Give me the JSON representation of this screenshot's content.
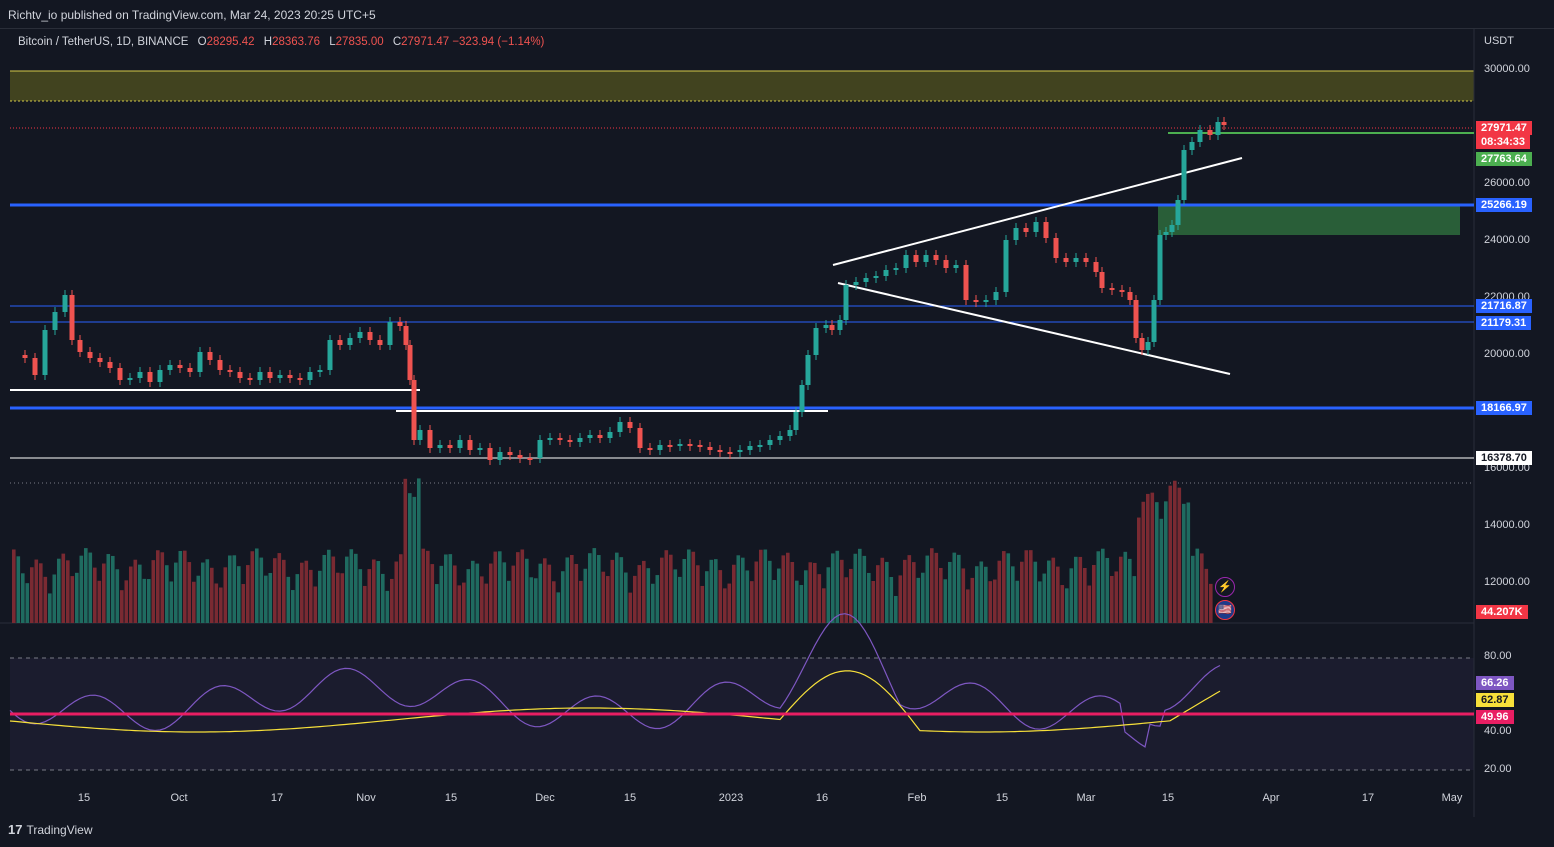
{
  "publisher": "Richtv_io published on TradingView.com, Mar 24, 2023 20:25 UTC+5",
  "legend": {
    "symbol": "Bitcoin / TetherUS, 1D, BINANCE",
    "o_label": "O",
    "o_val": "28295.42",
    "h_label": "H",
    "h_val": "28363.76",
    "l_label": "L",
    "l_val": "27835.00",
    "c_label": "C",
    "c_val": "27971.47",
    "change": "−323.94 (−1.14%)"
  },
  "currency": "USDT",
  "price_axis": {
    "ticks": [
      "30000.00",
      "26000.00",
      "24000.00",
      "22000.00",
      "20000.00",
      "16000.00",
      "14000.00",
      "12000.00"
    ],
    "labels": [
      {
        "text": "27971.47",
        "color": "#f23645"
      },
      {
        "text": "08:34:33",
        "color": "#f23645"
      },
      {
        "text": "27763.64",
        "color": "#4caf50"
      },
      {
        "text": "25266.19",
        "color": "#2962ff"
      },
      {
        "text": "21716.87",
        "color": "#2962ff"
      },
      {
        "text": "21179.31",
        "color": "#2962ff"
      },
      {
        "text": "18166.97",
        "color": "#2962ff"
      },
      {
        "text": "16378.70",
        "color": "#ffffff"
      },
      {
        "text": "44.207K",
        "color": "#f23645"
      }
    ]
  },
  "rsi_axis": {
    "ticks": [
      "80.00",
      "40.00",
      "20.00"
    ],
    "labels": [
      {
        "text": "66.26",
        "color": "#7e57c2"
      },
      {
        "text": "62.87",
        "color": "#f7e03a"
      },
      {
        "text": "49.96",
        "color": "#e91e63"
      }
    ]
  },
  "time_axis": [
    "15",
    "Oct",
    "17",
    "Nov",
    "15",
    "Dec",
    "15",
    "2023",
    "16",
    "Feb",
    "15",
    "Mar",
    "15",
    "Apr",
    "17",
    "May"
  ],
  "footer": {
    "brand": "TradingView",
    "logo": "17"
  },
  "icons": {
    "lightning": "lightning-icon",
    "flag": "us-flag-icon"
  }
}
